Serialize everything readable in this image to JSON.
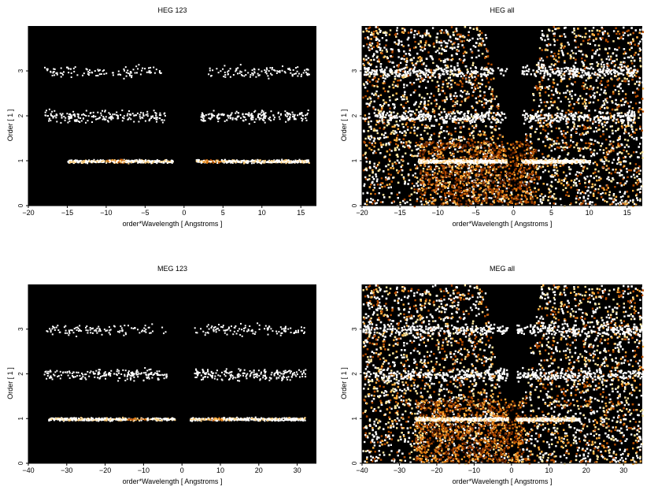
{
  "chart_data": [
    {
      "type": "heatmap",
      "title": "HEG 123",
      "xlabel": "order*Wavelength [ Angstroms ]",
      "ylabel": "Order [ 1 ]",
      "xlim": [
        -20,
        17
      ],
      "ylim": [
        0,
        4
      ],
      "xticks": [
        -20,
        -15,
        -10,
        -5,
        0,
        5,
        10,
        15
      ],
      "yticks": [
        0,
        1,
        2,
        3
      ],
      "background": "#000000",
      "bands": [
        {
          "order": 1,
          "x_ranges": [
            [
              -15,
              -1.5
            ],
            [
              1.5,
              16
            ]
          ],
          "peak_x": [
            -9,
            3.5
          ],
          "density": "high"
        },
        {
          "order": 2,
          "x_ranges": [
            [
              -18,
              -2.5
            ],
            [
              2,
              16
            ]
          ],
          "density": "medium"
        },
        {
          "order": 3,
          "x_ranges": [
            [
              -18,
              -3
            ],
            [
              3,
              16
            ]
          ],
          "density": "low"
        }
      ]
    },
    {
      "type": "heatmap",
      "title": "HEG all",
      "xlabel": "order*Wavelength [ Angstroms ]",
      "ylabel": "Order [ 1 ]",
      "xlim": [
        -20,
        17
      ],
      "ylim": [
        0,
        4
      ],
      "xticks": [
        -20,
        -15,
        -10,
        -5,
        0,
        5,
        10,
        15
      ],
      "yticks": [
        0,
        1,
        2,
        3
      ],
      "background": "#000000",
      "bands": [
        {
          "order": 1,
          "x_ranges": [
            [
              -12.5,
              -1
            ],
            [
              1,
              10
            ]
          ],
          "density": "high"
        },
        {
          "order": 2,
          "x_ranges": [
            [
              -20,
              -1
            ],
            [
              1,
              16
            ]
          ],
          "density": "medium"
        },
        {
          "order": 3,
          "x_ranges": [
            [
              -20,
              -1
            ],
            [
              1,
              16
            ]
          ],
          "density": "medium"
        }
      ]
    },
    {
      "type": "heatmap",
      "title": "MEG 123",
      "xlabel": "order*Wavelength [ Angstroms ]",
      "ylabel": "Order [ 1 ]",
      "xlim": [
        -40,
        35
      ],
      "ylim": [
        0,
        4
      ],
      "xticks": [
        -40,
        -30,
        -20,
        -10,
        0,
        10,
        20,
        30
      ],
      "yticks": [
        0,
        1,
        2,
        3
      ],
      "background": "#000000",
      "bands": [
        {
          "order": 1,
          "x_ranges": [
            [
              -35,
              -2
            ],
            [
              2,
              32
            ]
          ],
          "peak_x": [
            -12,
            8
          ],
          "density": "high"
        },
        {
          "order": 2,
          "x_ranges": [
            [
              -36,
              -4
            ],
            [
              3,
              32
            ]
          ],
          "density": "medium"
        },
        {
          "order": 3,
          "x_ranges": [
            [
              -36,
              -4
            ],
            [
              3,
              32
            ]
          ],
          "density": "low"
        }
      ]
    },
    {
      "type": "heatmap",
      "title": "MEG all",
      "xlabel": "order*Wavelength [ Angstroms ]",
      "ylabel": "Order [ 1 ]",
      "xlim": [
        -40,
        35
      ],
      "ylim": [
        0,
        4
      ],
      "xticks": [
        -40,
        -30,
        -20,
        -10,
        0,
        10,
        20,
        30
      ],
      "yticks": [
        0,
        1,
        2,
        3
      ],
      "background": "#000000",
      "bands": [
        {
          "order": 1,
          "x_ranges": [
            [
              -26,
              -1
            ],
            [
              1,
              18
            ]
          ],
          "density": "high"
        },
        {
          "order": 2,
          "x_ranges": [
            [
              -40,
              -1
            ],
            [
              1,
              35
            ]
          ],
          "density": "medium"
        },
        {
          "order": 3,
          "x_ranges": [
            [
              -40,
              -1
            ],
            [
              1,
              35
            ]
          ],
          "density": "medium"
        }
      ]
    }
  ]
}
